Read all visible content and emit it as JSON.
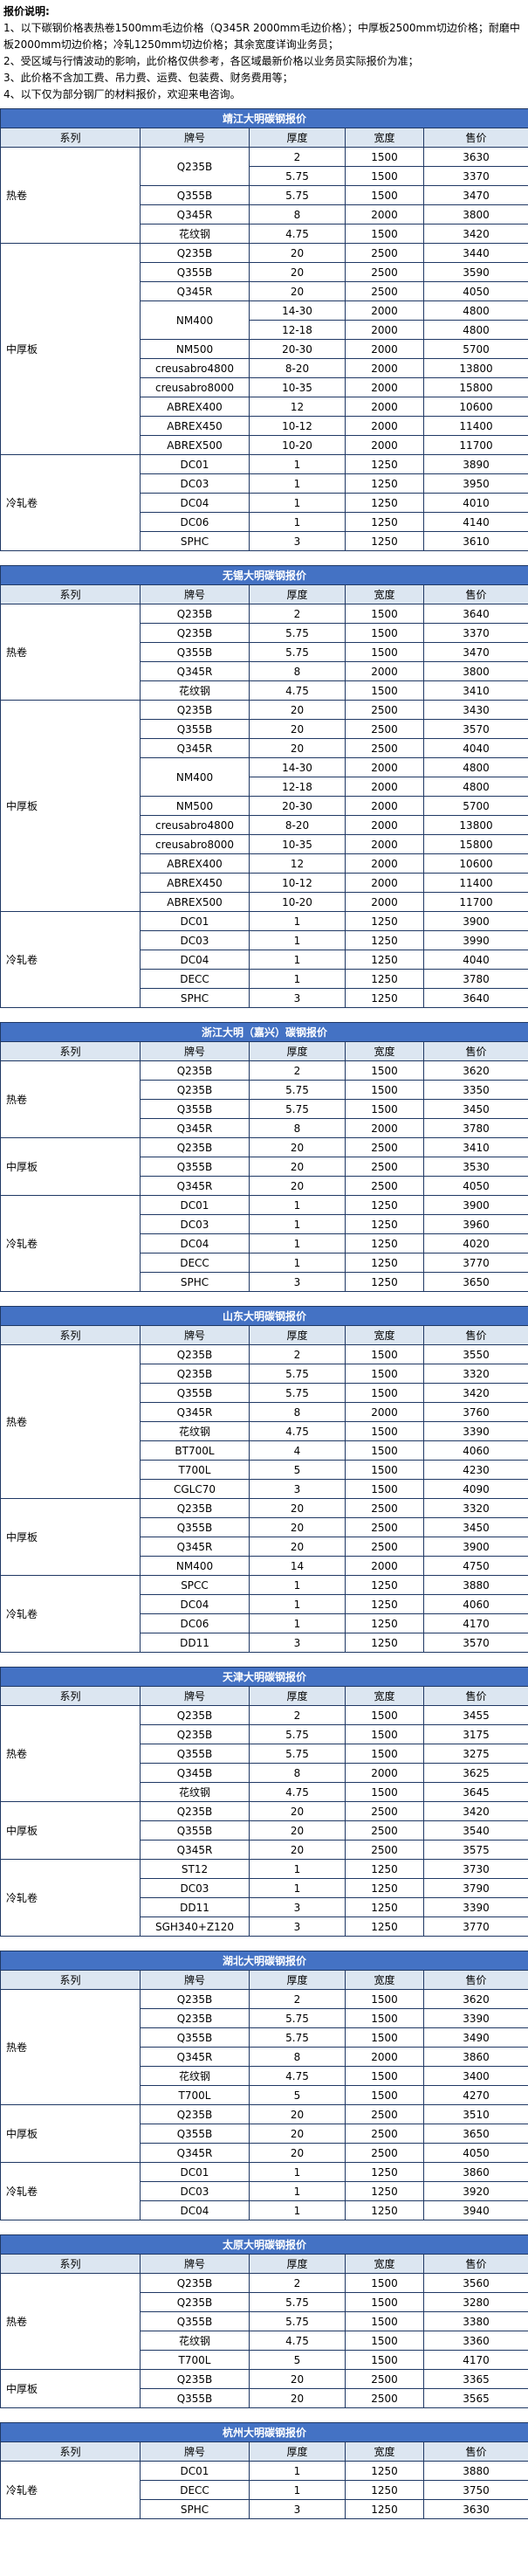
{
  "notes": {
    "title": "报价说明:",
    "items": [
      "1、以下碳钢价格表热卷1500mm毛边价格（Q345R 2000mm毛边价格）；中厚板2500mm切边价格；耐磨中板2000mm切边价格；冷轧1250mm切边价格；其余宽度详询业务员；",
      "2、受区域与行情波动的影响，此价格仅供参考，各区域最新价格以业务员实际报价为准；",
      "3、此价格不含加工费、吊力费、运费、包装费、财务费用等；",
      "4、以下仅为部分钢厂的材料报价，欢迎来电咨询。"
    ]
  },
  "tables": [
    {
      "title": "靖江大明碳钢报价",
      "header": [
        "系列",
        "牌号",
        "厚度",
        "宽度",
        "售价"
      ],
      "groups": [
        {
          "series": "热卷",
          "rows": [
            [
              "Q235B",
              "2",
              "1500",
              "3630"
            ],
            [
              "5.75",
              "1500",
              "3370"
            ],
            [
              "Q355B",
              "5.75",
              "1500",
              "3470"
            ],
            [
              "Q345R",
              "8",
              "2000",
              "3800"
            ],
            [
              "花纹钢",
              "4.75",
              "1500",
              "3420"
            ]
          ]
        },
        {
          "series": "中厚板",
          "rows": [
            [
              "Q235B",
              "20",
              "2500",
              "3440"
            ],
            [
              "Q355B",
              "20",
              "2500",
              "3590"
            ],
            [
              "Q345R",
              "20",
              "2500",
              "4050"
            ],
            [
              "NM400",
              "14-30",
              "2000",
              "4800"
            ],
            [
              "12-18",
              "2000",
              "4800"
            ],
            [
              "NM500",
              "20-30",
              "2000",
              "5700"
            ],
            [
              "creusabro4800",
              "8-20",
              "2000",
              "13800"
            ],
            [
              "creusabro8000",
              "10-35",
              "2000",
              "15800"
            ],
            [
              "ABREX400",
              "12",
              "2000",
              "10600"
            ],
            [
              "ABREX450",
              "10-12",
              "2000",
              "11400"
            ],
            [
              "ABREX500",
              "10-20",
              "2000",
              "11700"
            ]
          ]
        },
        {
          "series": "冷轧卷",
          "rows": [
            [
              "DC01",
              "1",
              "1250",
              "3890"
            ],
            [
              "DC03",
              "1",
              "1250",
              "3950"
            ],
            [
              "DC04",
              "1",
              "1250",
              "4010"
            ],
            [
              "DC06",
              "1",
              "1250",
              "4140"
            ],
            [
              "SPHC",
              "3",
              "1250",
              "3610"
            ]
          ]
        }
      ]
    },
    {
      "title": "无锡大明碳钢报价",
      "header": [
        "系列",
        "牌号",
        "厚度",
        "宽度",
        "售价"
      ],
      "groups": [
        {
          "series": "热卷",
          "rows": [
            [
              "Q235B",
              "2",
              "1500",
              "3640"
            ],
            [
              "Q235B",
              "5.75",
              "1500",
              "3370"
            ],
            [
              "Q355B",
              "5.75",
              "1500",
              "3470"
            ],
            [
              "Q345R",
              "8",
              "2000",
              "3800"
            ],
            [
              "花纹钢",
              "4.75",
              "1500",
              "3410"
            ]
          ]
        },
        {
          "series": "中厚板",
          "rows": [
            [
              "Q235B",
              "20",
              "2500",
              "3430"
            ],
            [
              "Q355B",
              "20",
              "2500",
              "3570"
            ],
            [
              "Q345R",
              "20",
              "2500",
              "4040"
            ],
            [
              "NM400",
              "14-30",
              "2000",
              "4800"
            ],
            [
              "12-18",
              "2000",
              "4800"
            ],
            [
              "NM500",
              "20-30",
              "2000",
              "5700"
            ],
            [
              "creusabro4800",
              "8-20",
              "2000",
              "13800"
            ],
            [
              "creusabro8000",
              "10-35",
              "2000",
              "15800"
            ],
            [
              "ABREX400",
              "12",
              "2000",
              "10600"
            ],
            [
              "ABREX450",
              "10-12",
              "2000",
              "11400"
            ],
            [
              "ABREX500",
              "10-20",
              "2000",
              "11700"
            ]
          ]
        },
        {
          "series": "冷轧卷",
          "rows": [
            [
              "DC01",
              "1",
              "1250",
              "3900"
            ],
            [
              "DC03",
              "1",
              "1250",
              "3990"
            ],
            [
              "DC04",
              "1",
              "1250",
              "4040"
            ],
            [
              "DECC",
              "1",
              "1250",
              "3780"
            ],
            [
              "SPHC",
              "3",
              "1250",
              "3640"
            ]
          ]
        }
      ]
    },
    {
      "title": "浙江大明（嘉兴）碳钢报价",
      "header": [
        "系列",
        "牌号",
        "厚度",
        "宽度",
        "售价"
      ],
      "groups": [
        {
          "series": "热卷",
          "rows": [
            [
              "Q235B",
              "2",
              "1500",
              "3620"
            ],
            [
              "Q235B",
              "5.75",
              "1500",
              "3350"
            ],
            [
              "Q355B",
              "5.75",
              "1500",
              "3450"
            ],
            [
              "Q345R",
              "8",
              "2000",
              "3780"
            ]
          ]
        },
        {
          "series": "中厚板",
          "rows": [
            [
              "Q235B",
              "20",
              "2500",
              "3410"
            ],
            [
              "Q355B",
              "20",
              "2500",
              "3530"
            ],
            [
              "Q345R",
              "20",
              "2500",
              "4050"
            ]
          ]
        },
        {
          "series": "冷轧卷",
          "rows": [
            [
              "DC01",
              "1",
              "1250",
              "3900"
            ],
            [
              "DC03",
              "1",
              "1250",
              "3960"
            ],
            [
              "DC04",
              "1",
              "1250",
              "4020"
            ],
            [
              "DECC",
              "1",
              "1250",
              "3770"
            ],
            [
              "SPHC",
              "3",
              "1250",
              "3650"
            ]
          ]
        }
      ]
    },
    {
      "title": "山东大明碳钢报价",
      "header": [
        "系列",
        "牌号",
        "厚度",
        "宽度",
        "售价"
      ],
      "groups": [
        {
          "series": "热卷",
          "rows": [
            [
              "Q235B",
              "2",
              "1500",
              "3550"
            ],
            [
              "Q235B",
              "5.75",
              "1500",
              "3320"
            ],
            [
              "Q355B",
              "5.75",
              "1500",
              "3420"
            ],
            [
              "Q345R",
              "8",
              "2000",
              "3760"
            ],
            [
              "花纹钢",
              "4.75",
              "1500",
              "3390"
            ],
            [
              "BT700L",
              "4",
              "1500",
              "4060"
            ],
            [
              "T700L",
              "5",
              "1500",
              "4230"
            ],
            [
              "CGLC70",
              "3",
              "1500",
              "4090"
            ]
          ]
        },
        {
          "series": "中厚板",
          "rows": [
            [
              "Q235B",
              "20",
              "2500",
              "3320"
            ],
            [
              "Q355B",
              "20",
              "2500",
              "3450"
            ],
            [
              "Q345R",
              "20",
              "2500",
              "3900"
            ],
            [
              "NM400",
              "14",
              "2000",
              "4750"
            ]
          ]
        },
        {
          "series": "冷轧卷",
          "rows": [
            [
              "SPCC",
              "1",
              "1250",
              "3880"
            ],
            [
              "DC04",
              "1",
              "1250",
              "4060"
            ],
            [
              "DC06",
              "1",
              "1250",
              "4170"
            ],
            [
              "DD11",
              "3",
              "1250",
              "3570"
            ]
          ]
        }
      ]
    },
    {
      "title": "天津大明碳钢报价",
      "header": [
        "系列",
        "牌号",
        "厚度",
        "宽度",
        "售价"
      ],
      "groups": [
        {
          "series": "热卷",
          "rows": [
            [
              "Q235B",
              "2",
              "1500",
              "3455"
            ],
            [
              "Q235B",
              "5.75",
              "1500",
              "3175"
            ],
            [
              "Q355B",
              "5.75",
              "1500",
              "3275"
            ],
            [
              "Q345B",
              "8",
              "2000",
              "3625"
            ],
            [
              "花纹钢",
              "4.75",
              "1500",
              "3645"
            ]
          ]
        },
        {
          "series": "中厚板",
          "rows": [
            [
              "Q235B",
              "20",
              "2500",
              "3420"
            ],
            [
              "Q355B",
              "20",
              "2500",
              "3540"
            ],
            [
              "Q345R",
              "20",
              "2500",
              "3575"
            ]
          ]
        },
        {
          "series": "冷轧卷",
          "rows": [
            [
              "ST12",
              "1",
              "1250",
              "3730"
            ],
            [
              "DC03",
              "1",
              "1250",
              "3790"
            ],
            [
              "DD11",
              "3",
              "1250",
              "3390"
            ],
            [
              "SGH340+Z120",
              "3",
              "1250",
              "3770"
            ]
          ]
        }
      ]
    },
    {
      "title": "湖北大明碳钢报价",
      "header": [
        "系列",
        "牌号",
        "厚度",
        "宽度",
        "售价"
      ],
      "groups": [
        {
          "series": "热卷",
          "rows": [
            [
              "Q235B",
              "2",
              "1500",
              "3620"
            ],
            [
              "Q235B",
              "5.75",
              "1500",
              "3390"
            ],
            [
              "Q355B",
              "5.75",
              "1500",
              "3490"
            ],
            [
              "Q345R",
              "8",
              "2000",
              "3860"
            ],
            [
              "花纹钢",
              "4.75",
              "1500",
              "3400"
            ],
            [
              "T700L",
              "5",
              "1500",
              "4270"
            ]
          ]
        },
        {
          "series": "中厚板",
          "rows": [
            [
              "Q235B",
              "20",
              "2500",
              "3510"
            ],
            [
              "Q355B",
              "20",
              "2500",
              "3650"
            ],
            [
              "Q345R",
              "20",
              "2500",
              "4050"
            ]
          ]
        },
        {
          "series": "冷轧卷",
          "rows": [
            [
              "DC01",
              "1",
              "1250",
              "3860"
            ],
            [
              "DC03",
              "1",
              "1250",
              "3920"
            ],
            [
              "DC04",
              "1",
              "1250",
              "3940"
            ]
          ]
        }
      ]
    },
    {
      "title": "太原大明碳钢报价",
      "header": [
        "系列",
        "牌号",
        "厚度",
        "宽度",
        "售价"
      ],
      "groups": [
        {
          "series": "热卷",
          "rows": [
            [
              "Q235B",
              "2",
              "1500",
              "3560"
            ],
            [
              "Q235B",
              "5.75",
              "1500",
              "3280"
            ],
            [
              "Q355B",
              "5.75",
              "1500",
              "3380"
            ],
            [
              "花纹钢",
              "4.75",
              "1500",
              "3360"
            ],
            [
              "T700L",
              "5",
              "1500",
              "4170"
            ]
          ]
        },
        {
          "series": "中厚板",
          "rows": [
            [
              "Q235B",
              "20",
              "2500",
              "3365"
            ],
            [
              "Q355B",
              "20",
              "2500",
              "3565"
            ]
          ]
        }
      ]
    },
    {
      "title": "杭州大明碳钢报价",
      "header": [
        "系列",
        "牌号",
        "厚度",
        "宽度",
        "售价"
      ],
      "groups": [
        {
          "series": "冷轧卷",
          "rows": [
            [
              "DC01",
              "1",
              "1250",
              "3880"
            ],
            [
              "DECC",
              "1",
              "1250",
              "3750"
            ],
            [
              "SPHC",
              "3",
              "1250",
              "3630"
            ]
          ]
        }
      ]
    }
  ]
}
